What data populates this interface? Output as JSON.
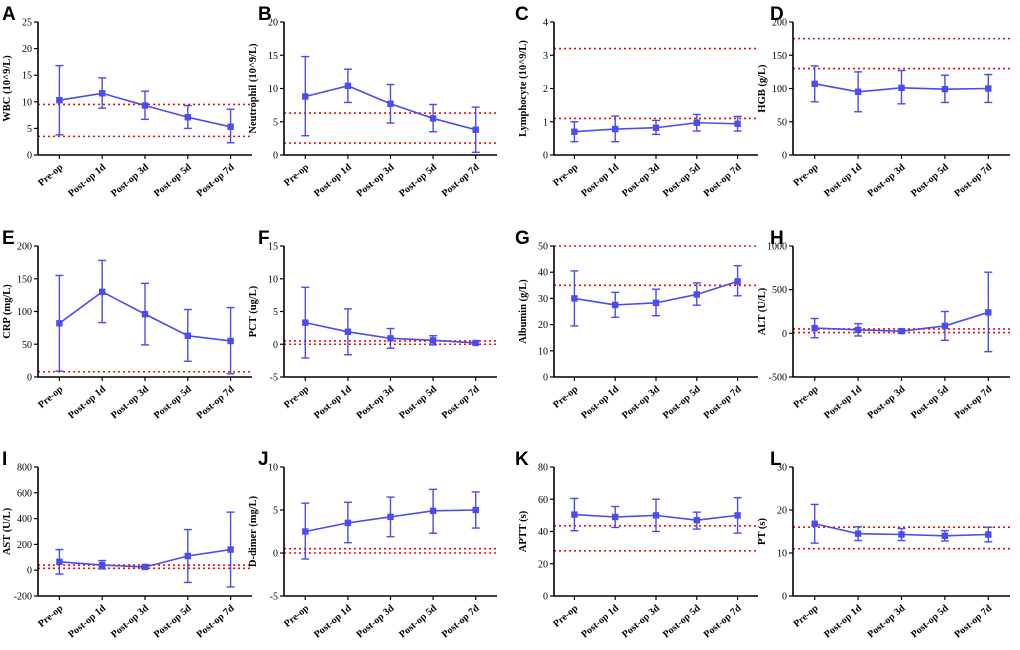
{
  "figure": {
    "series_color": "#4b4bf0",
    "reference_color": "#e01010"
  },
  "chart_data": [
    {
      "panel": "A",
      "type": "line",
      "ylabel": "WBC (10^9/L)",
      "categories": [
        "Pre-op",
        "Post-op 1d",
        "Post-op 3d",
        "Post-op 5d",
        "Post-op 7d"
      ],
      "ylim": [
        0,
        25
      ],
      "yticks": [
        0,
        5,
        10,
        15,
        20,
        25
      ],
      "tick_labels": [
        "0",
        "5",
        "10",
        "15",
        "20",
        "25"
      ],
      "series": [
        {
          "name": "WBC",
          "values": [
            10.3,
            11.6,
            9.3,
            7.1,
            5.3
          ],
          "err_low": [
            3.8,
            8.8,
            6.7,
            5.0,
            2.3
          ],
          "err_high": [
            16.8,
            14.5,
            12.0,
            9.3,
            8.6
          ]
        }
      ],
      "reference_lines": [
        3.5,
        9.5
      ]
    },
    {
      "panel": "B",
      "type": "line",
      "ylabel": "Neutrophil (10^9/L)",
      "categories": [
        "Pre-op",
        "Post-op 1d",
        "Post-op 3d",
        "Post-op 5d",
        "Post-op 7d"
      ],
      "ylim": [
        0,
        20
      ],
      "yticks": [
        0,
        5,
        10,
        15,
        20
      ],
      "tick_labels": [
        "0",
        "5",
        "10",
        "15",
        "20"
      ],
      "series": [
        {
          "name": "Neutrophil",
          "values": [
            8.8,
            10.4,
            7.7,
            5.5,
            3.8
          ],
          "err_low": [
            2.9,
            7.9,
            4.8,
            3.5,
            0.4
          ],
          "err_high": [
            14.8,
            12.9,
            10.6,
            7.6,
            7.2
          ]
        }
      ],
      "reference_lines": [
        1.8,
        6.3
      ]
    },
    {
      "panel": "C",
      "type": "line",
      "ylabel": "Lymphocyte (10^9/L)",
      "categories": [
        "Pre-op",
        "Post-op 1d",
        "Post-op 3d",
        "Post-op 5d",
        "Post-op 7d"
      ],
      "ylim": [
        0,
        4
      ],
      "yticks": [
        0,
        1,
        2,
        3,
        4
      ],
      "tick_labels": [
        "0",
        "1",
        "2",
        "3",
        "4"
      ],
      "series": [
        {
          "name": "Lymphocyte",
          "values": [
            0.7,
            0.78,
            0.82,
            0.97,
            0.94
          ],
          "err_low": [
            0.4,
            0.4,
            0.62,
            0.72,
            0.72
          ],
          "err_high": [
            1.0,
            1.17,
            1.04,
            1.22,
            1.16
          ]
        }
      ],
      "reference_lines": [
        1.1,
        3.2
      ]
    },
    {
      "panel": "D",
      "type": "line",
      "ylabel": "HGB (g/L)",
      "categories": [
        "Pre-op",
        "Post-op 1d",
        "Post-op 3d",
        "Post-op 5d",
        "Post-op 7d"
      ],
      "ylim": [
        0,
        200
      ],
      "yticks": [
        0,
        50,
        100,
        150,
        200
      ],
      "tick_labels": [
        "0",
        "50",
        "100",
        "150",
        "200"
      ],
      "series": [
        {
          "name": "HGB",
          "values": [
            107,
            95,
            101,
            99,
            100
          ],
          "err_low": [
            80,
            65,
            77,
            79,
            79
          ],
          "err_high": [
            134,
            125,
            127,
            120,
            121
          ]
        }
      ],
      "reference_lines": [
        130,
        175
      ]
    },
    {
      "panel": "E",
      "type": "line",
      "ylabel": "CRP (mg/L)",
      "categories": [
        "Pre-op",
        "Post-op 1d",
        "Post-op 3d",
        "Post-op 5d",
        "Post-op 7d"
      ],
      "ylim": [
        0,
        200
      ],
      "yticks": [
        0,
        50,
        100,
        150,
        200
      ],
      "tick_labels": [
        "0",
        "50",
        "100",
        "150",
        "200"
      ],
      "series": [
        {
          "name": "CRP",
          "values": [
            82,
            130,
            96,
            63,
            55
          ],
          "err_low": [
            9,
            83,
            49,
            24,
            5
          ],
          "err_high": [
            155,
            178,
            143,
            103,
            106
          ]
        }
      ],
      "reference_lines": [
        8
      ]
    },
    {
      "panel": "F",
      "type": "line",
      "ylabel": "PCT (ug/L)",
      "categories": [
        "Pre-op",
        "Post-op 1d",
        "Post-op 3d",
        "Post-op 5d",
        "Post-op 7d"
      ],
      "ylim": [
        -5,
        15
      ],
      "yticks": [
        -5,
        0,
        5,
        10,
        15
      ],
      "tick_labels": [
        "-5",
        "0",
        "5",
        "10",
        "15"
      ],
      "series": [
        {
          "name": "PCT",
          "values": [
            3.3,
            1.9,
            0.9,
            0.6,
            0.2
          ],
          "err_low": [
            -2.1,
            -1.6,
            -0.6,
            -0.1,
            0.0
          ],
          "err_high": [
            8.7,
            5.4,
            2.4,
            1.3,
            0.4
          ]
        }
      ],
      "reference_lines": [
        0.0,
        0.5
      ]
    },
    {
      "panel": "G",
      "type": "line",
      "ylabel": "Albumin (g/L)",
      "categories": [
        "Pre-op",
        "Post-op 1d",
        "Post-op 3d",
        "Post-op 5d",
        "Post-op 7d"
      ],
      "ylim": [
        0,
        50
      ],
      "yticks": [
        0,
        10,
        20,
        30,
        40,
        50
      ],
      "tick_labels": [
        "0",
        "10",
        "20",
        "30",
        "40",
        "50"
      ],
      "series": [
        {
          "name": "Albumin",
          "values": [
            30,
            27.5,
            28.3,
            31.5,
            36.5
          ],
          "err_low": [
            19.5,
            22.8,
            23.4,
            27.4,
            31.0
          ],
          "err_high": [
            40.5,
            32.3,
            33.5,
            35.9,
            42.5
          ]
        }
      ],
      "reference_lines": [
        35,
        50
      ]
    },
    {
      "panel": "H",
      "type": "line",
      "ylabel": "ALT (U/L)",
      "categories": [
        "Pre-op",
        "Post-op 1d",
        "Post-op 3d",
        "Post-op 5d",
        "Post-op 7d"
      ],
      "ylim": [
        -500,
        1000
      ],
      "yticks": [
        -500,
        0,
        500,
        1000
      ],
      "tick_labels": [
        "-500",
        "0",
        "500",
        "1000"
      ],
      "series": [
        {
          "name": "ALT",
          "values": [
            60,
            40,
            25,
            85,
            240
          ],
          "err_low": [
            -50,
            -30,
            5,
            -80,
            -210
          ],
          "err_high": [
            170,
            110,
            45,
            250,
            700
          ]
        }
      ],
      "reference_lines": [
        9,
        50
      ]
    },
    {
      "panel": "I",
      "type": "line",
      "ylabel": "AST (U/L)",
      "categories": [
        "Pre-op",
        "Post-op 1d",
        "Post-op 3d",
        "Post-op 5d",
        "Post-op 7d"
      ],
      "ylim": [
        -200,
        800
      ],
      "yticks": [
        -200,
        0,
        200,
        400,
        600,
        800
      ],
      "tick_labels": [
        "-200",
        "0",
        "200",
        "400",
        "600",
        "800"
      ],
      "series": [
        {
          "name": "AST",
          "values": [
            65,
            40,
            25,
            110,
            160
          ],
          "err_low": [
            -30,
            10,
            15,
            -95,
            -130
          ],
          "err_high": [
            160,
            75,
            35,
            315,
            450
          ]
        }
      ],
      "reference_lines": [
        15,
        40
      ]
    },
    {
      "panel": "J",
      "type": "line",
      "ylabel": "D-dimer (mg/L)",
      "categories": [
        "Pre-op",
        "Post-op 1d",
        "Post-op 3d",
        "Post-op 5d",
        "Post-op 7d"
      ],
      "ylim": [
        -5,
        10
      ],
      "yticks": [
        -5,
        0,
        5,
        10
      ],
      "tick_labels": [
        "-5",
        "0",
        "5",
        "10"
      ],
      "series": [
        {
          "name": "D-dimer",
          "values": [
            2.5,
            3.5,
            4.2,
            4.9,
            5.0
          ],
          "err_low": [
            -0.7,
            1.2,
            1.9,
            2.3,
            2.9
          ],
          "err_high": [
            5.8,
            5.9,
            6.5,
            7.4,
            7.1
          ]
        }
      ],
      "reference_lines": [
        0,
        0.5
      ]
    },
    {
      "panel": "K",
      "type": "line",
      "ylabel": "APTT (s)",
      "categories": [
        "Pre-op",
        "Post-op 1d",
        "Post-op 3d",
        "Post-op 5d",
        "Post-op 7d"
      ],
      "ylim": [
        0,
        80
      ],
      "yticks": [
        0,
        20,
        40,
        60,
        80
      ],
      "tick_labels": [
        "0",
        "20",
        "40",
        "60",
        "80"
      ],
      "series": [
        {
          "name": "APTT",
          "values": [
            50.5,
            49,
            50,
            47,
            50
          ],
          "err_low": [
            40.5,
            42.5,
            40,
            41.5,
            39
          ],
          "err_high": [
            60.5,
            55.5,
            60,
            52,
            61
          ]
        }
      ],
      "reference_lines": [
        28,
        43.5
      ]
    },
    {
      "panel": "L",
      "type": "line",
      "ylabel": "PT (s)",
      "categories": [
        "Pre-op",
        "Post-op 1d",
        "Post-op 3d",
        "Post-op 5d",
        "Post-op 7d"
      ],
      "ylim": [
        0,
        30
      ],
      "yticks": [
        0,
        10,
        20,
        30
      ],
      "tick_labels": [
        "0",
        "10",
        "20",
        "30"
      ],
      "series": [
        {
          "name": "PT",
          "values": [
            16.8,
            14.5,
            14.3,
            14.0,
            14.3
          ],
          "err_low": [
            12.3,
            12.9,
            12.9,
            12.8,
            12.6
          ],
          "err_high": [
            21.3,
            16.1,
            15.7,
            15.2,
            16.0
          ]
        }
      ],
      "reference_lines": [
        11,
        16
      ]
    }
  ]
}
